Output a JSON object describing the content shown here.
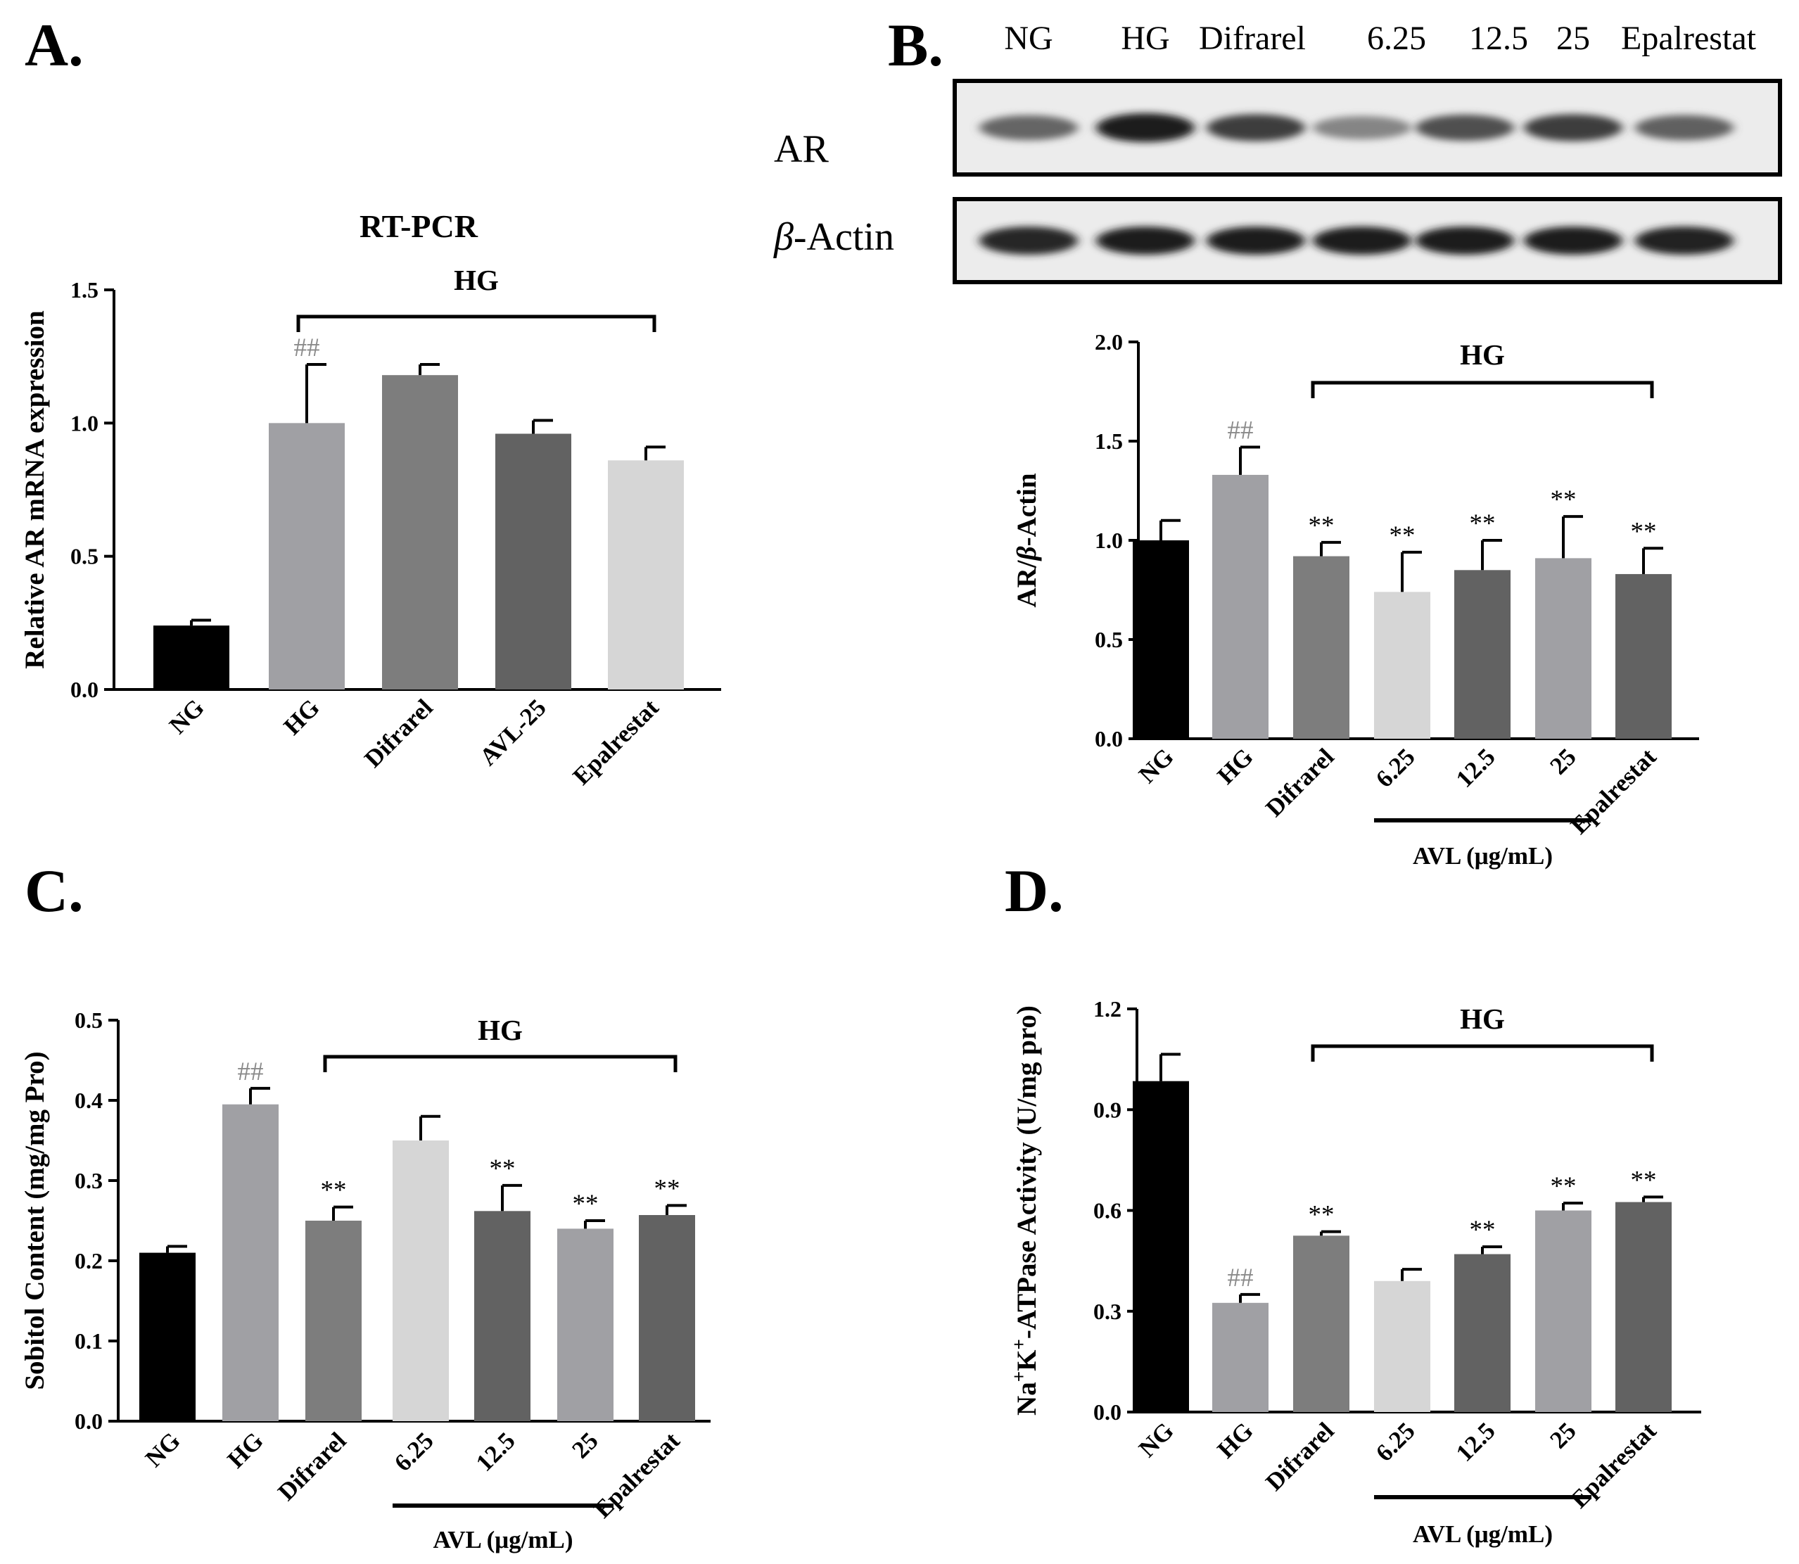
{
  "panels": {
    "A": {
      "letter": "A."
    },
    "B": {
      "letter": "B.",
      "blot": {
        "lanes": [
          "NG",
          "HG",
          "Difrarel",
          "6.25",
          "12.5",
          "25",
          "Epalrestat"
        ],
        "rows": [
          {
            "label_main": "AR",
            "label_greek": "",
            "intensity": [
              0.6,
              0.95,
              0.78,
              0.45,
              0.7,
              0.78,
              0.62
            ]
          },
          {
            "label_main": "-Actin",
            "label_greek": "β",
            "intensity": [
              0.9,
              0.94,
              0.95,
              0.94,
              0.95,
              0.95,
              0.92
            ]
          }
        ]
      }
    },
    "C": {
      "letter": "C."
    },
    "D": {
      "letter": "D."
    }
  },
  "chart_data": [
    {
      "id": "A",
      "type": "bar",
      "title": "RT-PCR",
      "ylabel": "Relative AR mRNA expression",
      "ylabel_parts": [
        {
          "text": "Relative AR mRNA expression"
        }
      ],
      "ylim": [
        0,
        1.5
      ],
      "yticks": [
        "0.0",
        "0.5",
        "1.0",
        "1.5"
      ],
      "categories": [
        "NG",
        "HG",
        "Difrarel",
        "AVL-25",
        "Epalrestat"
      ],
      "values": [
        0.24,
        1.0,
        1.18,
        0.96,
        0.86
      ],
      "errors": [
        0.02,
        0.22,
        0.04,
        0.05,
        0.05
      ],
      "colors": [
        "#000000",
        "#a0a0a4",
        "#7d7d7d",
        "#626262",
        "#d6d6d6"
      ],
      "annotations": [
        "",
        "##",
        "",
        "",
        ""
      ],
      "bracket": {
        "label": "HG",
        "from_index": 1,
        "to_index": 4
      },
      "group_bar": null
    },
    {
      "id": "B",
      "type": "bar",
      "title": "",
      "ylabel": "AR/β-Actin",
      "ylabel_parts": [
        {
          "text": "AR/"
        },
        {
          "text": "β",
          "italic": true
        },
        {
          "text": "-Actin"
        }
      ],
      "ylim": [
        0,
        2.0
      ],
      "yticks": [
        "0.0",
        "0.5",
        "1.0",
        "1.5",
        "2.0"
      ],
      "categories": [
        "NG",
        "HG",
        "Difrarel",
        "6.25",
        "12.5",
        "25",
        "Epalrestat"
      ],
      "values": [
        1.0,
        1.33,
        0.92,
        0.74,
        0.85,
        0.91,
        0.83
      ],
      "errors": [
        0.1,
        0.14,
        0.07,
        0.2,
        0.15,
        0.21,
        0.13
      ],
      "colors": [
        "#000000",
        "#a0a0a4",
        "#7d7d7d",
        "#d6d6d6",
        "#626262",
        "#a0a0a4",
        "#626262"
      ],
      "annotations": [
        "",
        "##",
        "**",
        "**",
        "**",
        "**",
        "**"
      ],
      "bracket": {
        "label": "HG",
        "from_index": 2,
        "to_index": 6
      },
      "group_bar": {
        "label": "AVL (μg/mL)",
        "from_index": 3,
        "to_index": 5
      }
    },
    {
      "id": "C",
      "type": "bar",
      "title": "",
      "ylabel": "Sobitol Content (mg/mg Pro)",
      "ylabel_parts": [
        {
          "text": "Sobitol Content (mg/mg Pro)"
        }
      ],
      "ylim": [
        0,
        0.5
      ],
      "yticks": [
        "0.0",
        "0.1",
        "0.2",
        "0.3",
        "0.4",
        "0.5"
      ],
      "categories": [
        "NG",
        "HG",
        "Difrarel",
        "6.25",
        "12.5",
        "25",
        "Epalrestat"
      ],
      "values": [
        0.21,
        0.395,
        0.25,
        0.35,
        0.262,
        0.24,
        0.257
      ],
      "errors": [
        0.008,
        0.02,
        0.017,
        0.03,
        0.032,
        0.01,
        0.012
      ],
      "colors": [
        "#000000",
        "#a0a0a4",
        "#7d7d7d",
        "#d6d6d6",
        "#626262",
        "#a0a0a4",
        "#626262"
      ],
      "annotations": [
        "",
        "##",
        "**",
        "",
        "**",
        "**",
        "**"
      ],
      "bracket": {
        "label": "HG",
        "from_index": 2,
        "to_index": 6
      },
      "group_bar": {
        "label": "AVL (μg/mL)",
        "from_index": 3,
        "to_index": 5
      }
    },
    {
      "id": "D",
      "type": "bar",
      "title": "",
      "ylabel": "Na+K+-ATPase Activity (U/mg pro)",
      "ylabel_parts": [
        {
          "text": "Na"
        },
        {
          "text": "+",
          "sup": true
        },
        {
          "text": "K"
        },
        {
          "text": "+",
          "sup": true
        },
        {
          "text": "-ATPase Activity (U/mg pro)"
        }
      ],
      "ylim": [
        0,
        1.2
      ],
      "yticks": [
        "0.0",
        "0.3",
        "0.6",
        "0.9",
        "1.2"
      ],
      "categories": [
        "NG",
        "HG",
        "Difrarel",
        "6.25",
        "12.5",
        "25",
        "Epalrestat"
      ],
      "values": [
        0.985,
        0.325,
        0.525,
        0.39,
        0.47,
        0.6,
        0.625
      ],
      "errors": [
        0.08,
        0.025,
        0.012,
        0.035,
        0.022,
        0.022,
        0.015
      ],
      "colors": [
        "#000000",
        "#a0a0a4",
        "#7d7d7d",
        "#d6d6d6",
        "#626262",
        "#a0a0a4",
        "#626262"
      ],
      "annotations": [
        "",
        "##",
        "**",
        "",
        "**",
        "**",
        "**"
      ],
      "bracket": {
        "label": "HG",
        "from_index": 2,
        "to_index": 6
      },
      "group_bar": {
        "label": "AVL (μg/mL)",
        "from_index": 3,
        "to_index": 5
      }
    }
  ]
}
